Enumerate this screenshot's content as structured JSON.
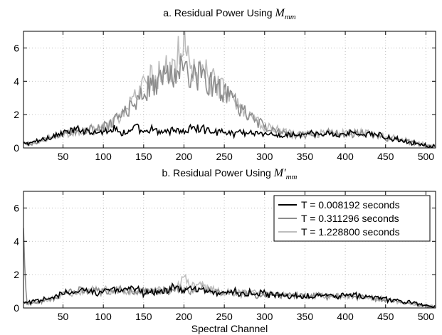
{
  "chart_data": [
    {
      "type": "line",
      "title": "a. Residual Power Using ",
      "title_math": {
        "base": "M",
        "sub": "mm",
        "prime": ""
      },
      "xlabel": "",
      "ylabel": "",
      "xlim": [
        1,
        512
      ],
      "ylim": [
        0,
        7
      ],
      "xticks": [
        50,
        100,
        150,
        200,
        250,
        300,
        350,
        400,
        450,
        500
      ],
      "yticks": [
        0,
        2,
        4,
        6
      ],
      "grid": true,
      "legend": null,
      "series": [
        {
          "color": "#000000",
          "x": [
            1,
            10,
            20,
            30,
            40,
            50,
            60,
            70,
            80,
            90,
            100,
            110,
            120,
            130,
            140,
            150,
            160,
            170,
            180,
            190,
            200,
            210,
            220,
            230,
            240,
            250,
            260,
            270,
            280,
            290,
            300,
            310,
            320,
            330,
            340,
            350,
            360,
            370,
            380,
            390,
            400,
            410,
            420,
            430,
            440,
            450,
            460,
            470,
            480,
            490,
            500,
            505,
            512
          ],
          "y": [
            0.25,
            0.3,
            0.45,
            0.6,
            0.75,
            0.9,
            1.0,
            1.1,
            1.05,
            1.0,
            0.95,
            1.2,
            1.0,
            0.9,
            1.25,
            0.85,
            1.1,
            0.9,
            1.05,
            1.1,
            0.95,
            1.2,
            1.15,
            1.05,
            1.0,
            0.95,
            0.85,
            1.0,
            0.9,
            0.95,
            0.85,
            0.75,
            0.7,
            0.8,
            0.75,
            0.8,
            0.85,
            0.75,
            0.9,
            0.8,
            0.85,
            0.9,
            0.8,
            0.85,
            0.75,
            0.65,
            0.55,
            0.45,
            0.35,
            0.25,
            0.15,
            0.1,
            0.1
          ]
        },
        {
          "color": "#8c8c8c",
          "x": [
            1,
            10,
            20,
            30,
            40,
            50,
            60,
            70,
            80,
            90,
            100,
            110,
            120,
            130,
            140,
            150,
            160,
            170,
            180,
            190,
            200,
            210,
            220,
            230,
            240,
            250,
            260,
            270,
            280,
            290,
            300,
            310,
            320,
            330,
            340,
            350,
            360,
            370,
            380,
            390,
            400,
            410,
            420,
            430,
            440,
            450,
            460,
            470,
            480,
            490,
            500,
            505,
            512
          ],
          "y": [
            0.2,
            0.25,
            0.35,
            0.55,
            0.7,
            0.85,
            0.95,
            1.0,
            1.05,
            1.1,
            1.25,
            1.45,
            1.8,
            2.3,
            2.8,
            3.4,
            3.8,
            4.1,
            4.3,
            4.6,
            4.7,
            4.3,
            4.4,
            3.9,
            3.7,
            3.3,
            2.8,
            2.4,
            2.0,
            1.6,
            1.3,
            1.1,
            0.95,
            0.85,
            0.8,
            0.8,
            0.85,
            0.85,
            0.9,
            0.9,
            0.9,
            0.85,
            0.85,
            0.8,
            0.75,
            0.6,
            0.55,
            0.45,
            0.35,
            0.25,
            0.15,
            0.1,
            0.1
          ]
        },
        {
          "color": "#bdbdbd",
          "x": [
            1,
            10,
            20,
            30,
            40,
            50,
            60,
            70,
            80,
            90,
            100,
            110,
            120,
            130,
            140,
            150,
            160,
            170,
            180,
            190,
            200,
            210,
            220,
            230,
            240,
            250,
            260,
            270,
            280,
            290,
            300,
            310,
            320,
            330,
            340,
            350,
            360,
            370,
            380,
            390,
            400,
            410,
            420,
            430,
            440,
            450,
            460,
            470,
            480,
            490,
            500,
            505,
            512
          ],
          "y": [
            0.2,
            0.25,
            0.35,
            0.55,
            0.7,
            0.85,
            0.95,
            1.0,
            1.05,
            1.15,
            1.3,
            1.5,
            1.9,
            2.4,
            3.0,
            3.6,
            4.1,
            4.5,
            4.8,
            5.0,
            6.8,
            4.7,
            4.6,
            4.2,
            3.9,
            3.4,
            2.9,
            2.5,
            2.1,
            1.7,
            1.35,
            1.15,
            1.0,
            0.9,
            0.85,
            0.85,
            0.85,
            0.9,
            0.95,
            0.95,
            0.95,
            0.9,
            0.9,
            0.85,
            0.8,
            0.65,
            0.6,
            0.5,
            0.4,
            0.3,
            0.2,
            0.1,
            0.1
          ]
        }
      ]
    },
    {
      "type": "line",
      "title": "b. Residual Power Using ",
      "title_math": {
        "base": "M",
        "sub": "mm",
        "prime": "′"
      },
      "xlabel": "Spectral Channel",
      "ylabel": "",
      "xlim": [
        1,
        512
      ],
      "ylim": [
        0,
        7
      ],
      "xticks": [
        50,
        100,
        150,
        200,
        250,
        300,
        350,
        400,
        450,
        500
      ],
      "yticks": [
        0,
        2,
        4,
        6
      ],
      "grid": true,
      "legend": {
        "position": "top-right",
        "entries": [
          "T = 0.008192 seconds",
          "T = 0.311296 seconds",
          "T = 1.228800 seconds"
        ]
      },
      "series": [
        {
          "name": "T = 0.008192 seconds",
          "color": "#000000",
          "x": [
            1,
            5,
            10,
            20,
            30,
            40,
            50,
            60,
            70,
            80,
            90,
            100,
            110,
            120,
            130,
            140,
            150,
            160,
            170,
            180,
            190,
            200,
            210,
            220,
            230,
            240,
            250,
            260,
            270,
            280,
            290,
            300,
            310,
            320,
            330,
            340,
            350,
            360,
            370,
            380,
            390,
            400,
            410,
            420,
            430,
            440,
            450,
            460,
            470,
            480,
            490,
            500,
            505,
            512
          ],
          "y": [
            0.3,
            0.3,
            0.35,
            0.4,
            0.55,
            0.7,
            0.85,
            0.9,
            1.0,
            1.1,
            0.95,
            1.05,
            1.15,
            0.95,
            1.05,
            1.2,
            0.9,
            1.05,
            0.95,
            1.1,
            1.3,
            1.05,
            1.15,
            1.0,
            1.05,
            0.95,
            0.9,
            1.0,
            0.85,
            0.9,
            0.8,
            0.85,
            0.75,
            0.8,
            0.7,
            0.75,
            0.7,
            0.8,
            0.75,
            0.85,
            0.7,
            0.8,
            0.75,
            0.7,
            0.65,
            0.6,
            0.55,
            0.45,
            0.4,
            0.3,
            0.25,
            0.15,
            0.1,
            0.1
          ]
        },
        {
          "name": "T = 0.311296 seconds",
          "color": "#8c8c8c",
          "x": [
            1,
            5,
            10,
            20,
            30,
            40,
            50,
            60,
            70,
            80,
            90,
            100,
            110,
            120,
            130,
            140,
            150,
            160,
            170,
            180,
            190,
            200,
            210,
            220,
            230,
            240,
            250,
            260,
            270,
            280,
            290,
            300,
            310,
            320,
            330,
            340,
            350,
            360,
            370,
            380,
            390,
            400,
            410,
            420,
            430,
            440,
            450,
            460,
            470,
            480,
            490,
            500,
            505,
            512
          ],
          "y": [
            4.5,
            0.3,
            0.3,
            0.4,
            0.5,
            0.65,
            0.8,
            0.95,
            1.05,
            1.0,
            1.1,
            1.0,
            0.95,
            1.1,
            1.0,
            0.9,
            1.05,
            1.0,
            1.1,
            1.0,
            1.2,
            1.1,
            1.05,
            1.15,
            1.0,
            0.95,
            0.9,
            0.95,
            0.85,
            0.9,
            0.8,
            0.75,
            0.85,
            0.7,
            0.75,
            0.8,
            0.7,
            0.75,
            0.8,
            0.7,
            0.75,
            0.7,
            0.65,
            0.7,
            0.6,
            0.55,
            0.5,
            0.45,
            0.35,
            0.3,
            0.2,
            0.15,
            0.1,
            0.1
          ]
        },
        {
          "name": "T = 1.228800 seconds",
          "color": "#bdbdbd",
          "x": [
            1,
            5,
            10,
            20,
            30,
            40,
            50,
            60,
            70,
            80,
            90,
            100,
            110,
            120,
            130,
            140,
            150,
            160,
            170,
            180,
            190,
            200,
            210,
            220,
            230,
            240,
            250,
            260,
            270,
            280,
            290,
            300,
            310,
            320,
            330,
            340,
            350,
            360,
            370,
            380,
            390,
            400,
            410,
            420,
            430,
            440,
            450,
            460,
            470,
            480,
            490,
            500,
            505,
            512
          ],
          "y": [
            0.3,
            0.3,
            0.3,
            0.35,
            0.5,
            0.65,
            0.8,
            0.9,
            1.0,
            1.05,
            1.0,
            1.1,
            1.0,
            1.05,
            0.95,
            1.1,
            1.0,
            1.05,
            1.1,
            1.0,
            1.25,
            1.7,
            1.3,
            1.5,
            1.1,
            1.0,
            0.95,
            0.9,
            1.0,
            0.85,
            0.9,
            0.8,
            0.85,
            0.75,
            0.8,
            0.7,
            0.75,
            0.8,
            0.7,
            0.75,
            0.8,
            0.7,
            0.75,
            0.65,
            0.6,
            0.55,
            0.5,
            0.45,
            0.35,
            0.3,
            0.2,
            0.15,
            0.1,
            0.1
          ]
        }
      ]
    }
  ]
}
